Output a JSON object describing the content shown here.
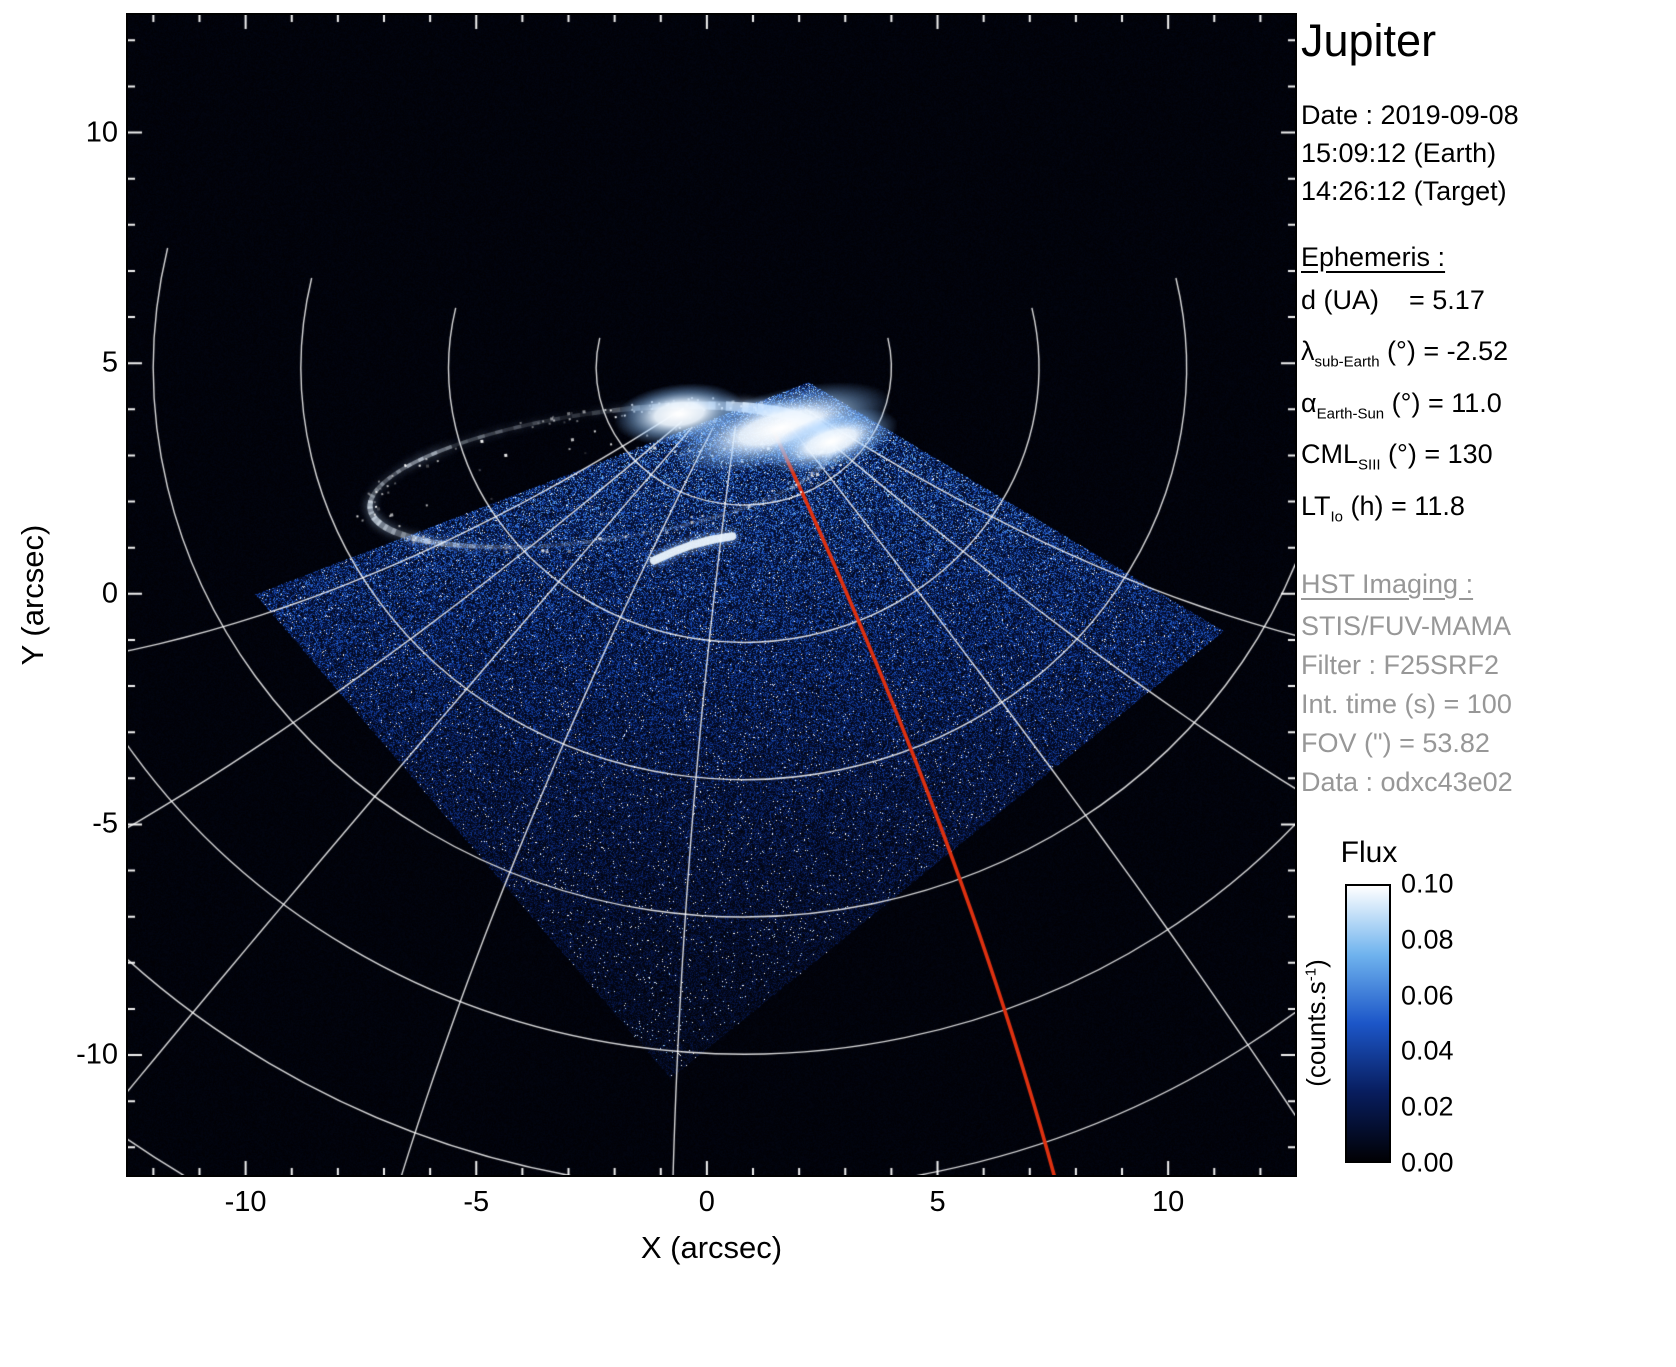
{
  "panel": {
    "title": "Jupiter",
    "date_lines": [
      "Date : 2019-09-08",
      "15:09:12 (Earth)",
      "14:26:12 (Target)"
    ],
    "ephemeris_heading": "Ephemeris :",
    "ephemeris_rows": [
      {
        "sym": "d (UA)",
        "sub": "",
        "rest": "    = 5.17"
      },
      {
        "sym": "λ",
        "sub": "sub-Earth",
        "rest": " (°) = -2.52"
      },
      {
        "sym": "α",
        "sub": "Earth-Sun",
        "rest": " (°) = 11.0"
      },
      {
        "sym": "CML",
        "sub": "SIII",
        "rest": " (°) = 130"
      },
      {
        "sym": "LT",
        "sub": "Io",
        "rest": " (h) = 11.8"
      }
    ],
    "hst_heading": "HST Imaging :",
    "hst_lines": [
      "STIS/FUV-MAMA",
      "Filter : F25SRF2",
      "Int. time (s) = 100",
      "FOV (\") = 53.82",
      "Data : odxc43e02"
    ]
  },
  "chart_data": {
    "type": "heatmap",
    "title": "Jupiter HST FUV auroral image",
    "xlabel": "X (arcsec)",
    "ylabel": "Y (arcsec)",
    "xlim": [
      -12.55,
      12.75
    ],
    "ylim": [
      -12.6,
      12.55
    ],
    "xticks": [
      -10,
      -5,
      0,
      5,
      10
    ],
    "yticks": [
      -10,
      -5,
      0,
      5,
      10
    ],
    "minor_tick_step": 1,
    "grid": false,
    "colorbar": {
      "title": "Flux",
      "unit_pre": "(counts.s",
      "unit_sup": "-1",
      "unit_post": ")",
      "ticks": [
        "0.10",
        "0.08",
        "0.06",
        "0.04",
        "0.02",
        "0.00"
      ],
      "min": 0.0,
      "max": 0.1,
      "colormap": [
        "#010105",
        "#081d5e",
        "#1c56c8",
        "#6fb3ee",
        "#ffffff"
      ]
    },
    "features": {
      "background": "#010103",
      "detector_fov_polygon": [
        [
          -9.8,
          0.0
        ],
        [
          2.2,
          4.6
        ],
        [
          11.2,
          -0.8
        ],
        [
          -0.8,
          -10.5
        ]
      ],
      "graticule": {
        "pole": [
          0.8,
          4.9
        ],
        "lat_radii": [
          3.2,
          6.4,
          9.6,
          12.8,
          16.0,
          19.2,
          22.4
        ],
        "flatten": 0.93,
        "meridian_angles_deg": [
          -80,
          -60,
          -40,
          -20,
          -3,
          35,
          60,
          80
        ],
        "color": "rgba(255,255,255,0.85)"
      },
      "io_footprint_meridian": {
        "angle_deg": 18,
        "color": "#de3110"
      },
      "aurora": {
        "center": [
          -2.3,
          2.55
        ],
        "rx": 5.05,
        "ry": 1.38,
        "rotation_deg": -8,
        "bright_spot": [
          1.6,
          3.6
        ],
        "secondary_streak": [
          [
            -1.15,
            0.72
          ],
          [
            -0.3,
            1.15
          ],
          [
            0.55,
            1.25
          ]
        ],
        "color": "#ffffff"
      }
    }
  }
}
